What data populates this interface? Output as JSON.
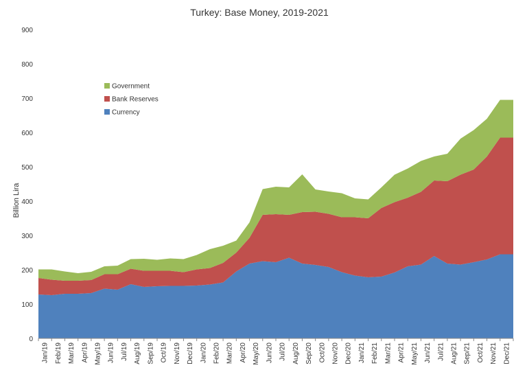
{
  "chart_data": {
    "type": "area",
    "stacked": true,
    "title": "Turkey: Base Money, 2019-2021",
    "xlabel": "",
    "ylabel": "Billion Lira",
    "ylim": [
      0,
      900
    ],
    "yticks": [
      0,
      100,
      200,
      300,
      400,
      500,
      600,
      700,
      800,
      900
    ],
    "legend_position": "upper-left-inside",
    "grid": false,
    "categories": [
      "Jan/19",
      "Feb/19",
      "Mar/19",
      "Apr/19",
      "May/19",
      "Jun/19",
      "Jul/19",
      "Aug/19",
      "Sep/19",
      "Oct/19",
      "Nov/19",
      "Dec/19",
      "Jan/20",
      "Feb/20",
      "Mar/20",
      "Apr/20",
      "May/20",
      "Jun/20",
      "Jul/20",
      "Aug/20",
      "Sep/20",
      "Oct/20",
      "Nov/20",
      "Dec/20",
      "Jan/21",
      "Feb/21",
      "Mar/21",
      "Apr/21",
      "May/21",
      "Jun/21",
      "Jul/21",
      "Aug/21",
      "Sep/21",
      "Oct/21",
      "Nov/21",
      "Dec/21"
    ],
    "series": [
      {
        "name": "Currency",
        "color": "#4f81bd",
        "values": [
          128,
          126,
          130,
          130,
          132,
          145,
          142,
          158,
          150,
          152,
          153,
          153,
          154,
          157,
          163,
          195,
          218,
          225,
          222,
          235,
          218,
          214,
          208,
          193,
          183,
          178,
          180,
          192,
          210,
          215,
          240,
          218,
          215,
          222,
          230,
          245
        ]
      },
      {
        "name": "Bank Reserves",
        "color": "#c0504d",
        "values": [
          48,
          45,
          38,
          38,
          38,
          42,
          45,
          45,
          47,
          45,
          44,
          40,
          47,
          48,
          57,
          55,
          75,
          135,
          140,
          125,
          150,
          155,
          155,
          160,
          170,
          172,
          200,
          205,
          200,
          212,
          220,
          240,
          262,
          270,
          300,
          340
        ]
      },
      {
        "name": "Government",
        "color": "#9bbb59",
        "values": [
          25,
          30,
          27,
          22,
          24,
          23,
          25,
          28,
          35,
          32,
          36,
          38,
          42,
          55,
          50,
          35,
          45,
          75,
          80,
          80,
          110,
          65,
          65,
          70,
          55,
          55,
          60,
          80,
          85,
          90,
          70,
          80,
          105,
          115,
          110,
          110
        ]
      }
    ]
  }
}
